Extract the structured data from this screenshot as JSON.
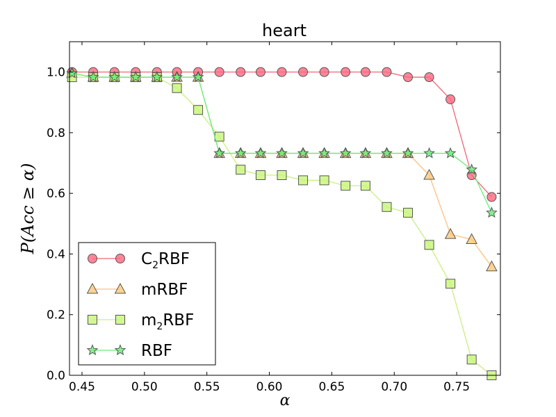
{
  "chart_data": {
    "type": "line",
    "title": "heart",
    "xlabel": "α",
    "ylabel": "P(Acc ≥ α)",
    "xlim": [
      0.44,
      0.785
    ],
    "ylim": [
      0.0,
      1.1
    ],
    "grid": false,
    "xticks": [
      0.45,
      0.5,
      0.55,
      0.6,
      0.65,
      0.7,
      0.75
    ],
    "xtick_labels": [
      "0.45",
      "0.50",
      "0.55",
      "0.60",
      "0.65",
      "0.70",
      "0.75"
    ],
    "yticks": [
      0.0,
      0.2,
      0.4,
      0.6,
      0.8,
      1.0
    ],
    "ytick_labels": [
      "0.0",
      "0.2",
      "0.4",
      "0.6",
      "0.8",
      "1.0"
    ],
    "legend_position": "lower-left",
    "series": [
      {
        "name": "C₂RBF",
        "legend_main": "C",
        "legend_sub": "2",
        "legend_rest": "RBF",
        "marker": "circle",
        "color": "#ff6680",
        "line_color": "#ee6677",
        "x": [
          0.442,
          0.459,
          0.476,
          0.493,
          0.51,
          0.526,
          0.543,
          0.56,
          0.577,
          0.593,
          0.61,
          0.627,
          0.644,
          0.661,
          0.677,
          0.694,
          0.711,
          0.728,
          0.745,
          0.762,
          0.778
        ],
        "values": [
          1.0,
          1.0,
          1.0,
          1.0,
          1.0,
          1.0,
          1.0,
          1.0,
          1.0,
          1.0,
          1.0,
          1.0,
          1.0,
          1.0,
          1.0,
          1.0,
          0.983,
          0.983,
          0.91,
          0.66,
          0.588
        ]
      },
      {
        "name": "mRBF",
        "legend_main": "mRBF",
        "legend_sub": "",
        "legend_rest": "",
        "marker": "triangle",
        "color": "#ffc87a",
        "line_color": "#ffc080",
        "x": [
          0.442,
          0.459,
          0.476,
          0.493,
          0.51,
          0.526,
          0.543,
          0.56,
          0.577,
          0.593,
          0.61,
          0.627,
          0.644,
          0.661,
          0.677,
          0.694,
          0.711,
          0.728,
          0.745,
          0.762,
          0.778
        ],
        "values": [
          0.996,
          0.983,
          0.983,
          0.983,
          0.983,
          0.983,
          0.983,
          0.732,
          0.732,
          0.732,
          0.732,
          0.732,
          0.732,
          0.732,
          0.732,
          0.732,
          0.732,
          0.66,
          0.465,
          0.448,
          0.358
        ]
      },
      {
        "name": "m₂RBF",
        "legend_main": "m",
        "legend_sub": "2",
        "legend_rest": "RBF",
        "marker": "square",
        "color": "#c8f578",
        "line_color": "#c8f080",
        "x": [
          0.442,
          0.459,
          0.476,
          0.493,
          0.51,
          0.526,
          0.543,
          0.56,
          0.577,
          0.593,
          0.61,
          0.627,
          0.644,
          0.661,
          0.677,
          0.694,
          0.711,
          0.728,
          0.745,
          0.762,
          0.778
        ],
        "values": [
          0.983,
          0.983,
          0.983,
          0.983,
          0.983,
          0.947,
          0.875,
          0.787,
          0.678,
          0.66,
          0.66,
          0.643,
          0.643,
          0.625,
          0.625,
          0.555,
          0.536,
          0.43,
          0.302,
          0.052,
          0.0
        ]
      },
      {
        "name": "RBF",
        "legend_main": "RBF",
        "legend_sub": "",
        "legend_rest": "",
        "marker": "star",
        "color": "#66ee77",
        "line_color": "#66ee77",
        "x": [
          0.442,
          0.459,
          0.476,
          0.493,
          0.51,
          0.526,
          0.543,
          0.56,
          0.577,
          0.593,
          0.61,
          0.627,
          0.644,
          0.661,
          0.677,
          0.694,
          0.711,
          0.728,
          0.745,
          0.762,
          0.778
        ],
        "values": [
          0.996,
          0.983,
          0.983,
          0.983,
          0.983,
          0.983,
          0.983,
          0.732,
          0.732,
          0.732,
          0.732,
          0.732,
          0.732,
          0.732,
          0.732,
          0.732,
          0.732,
          0.732,
          0.732,
          0.678,
          0.536
        ]
      }
    ]
  }
}
